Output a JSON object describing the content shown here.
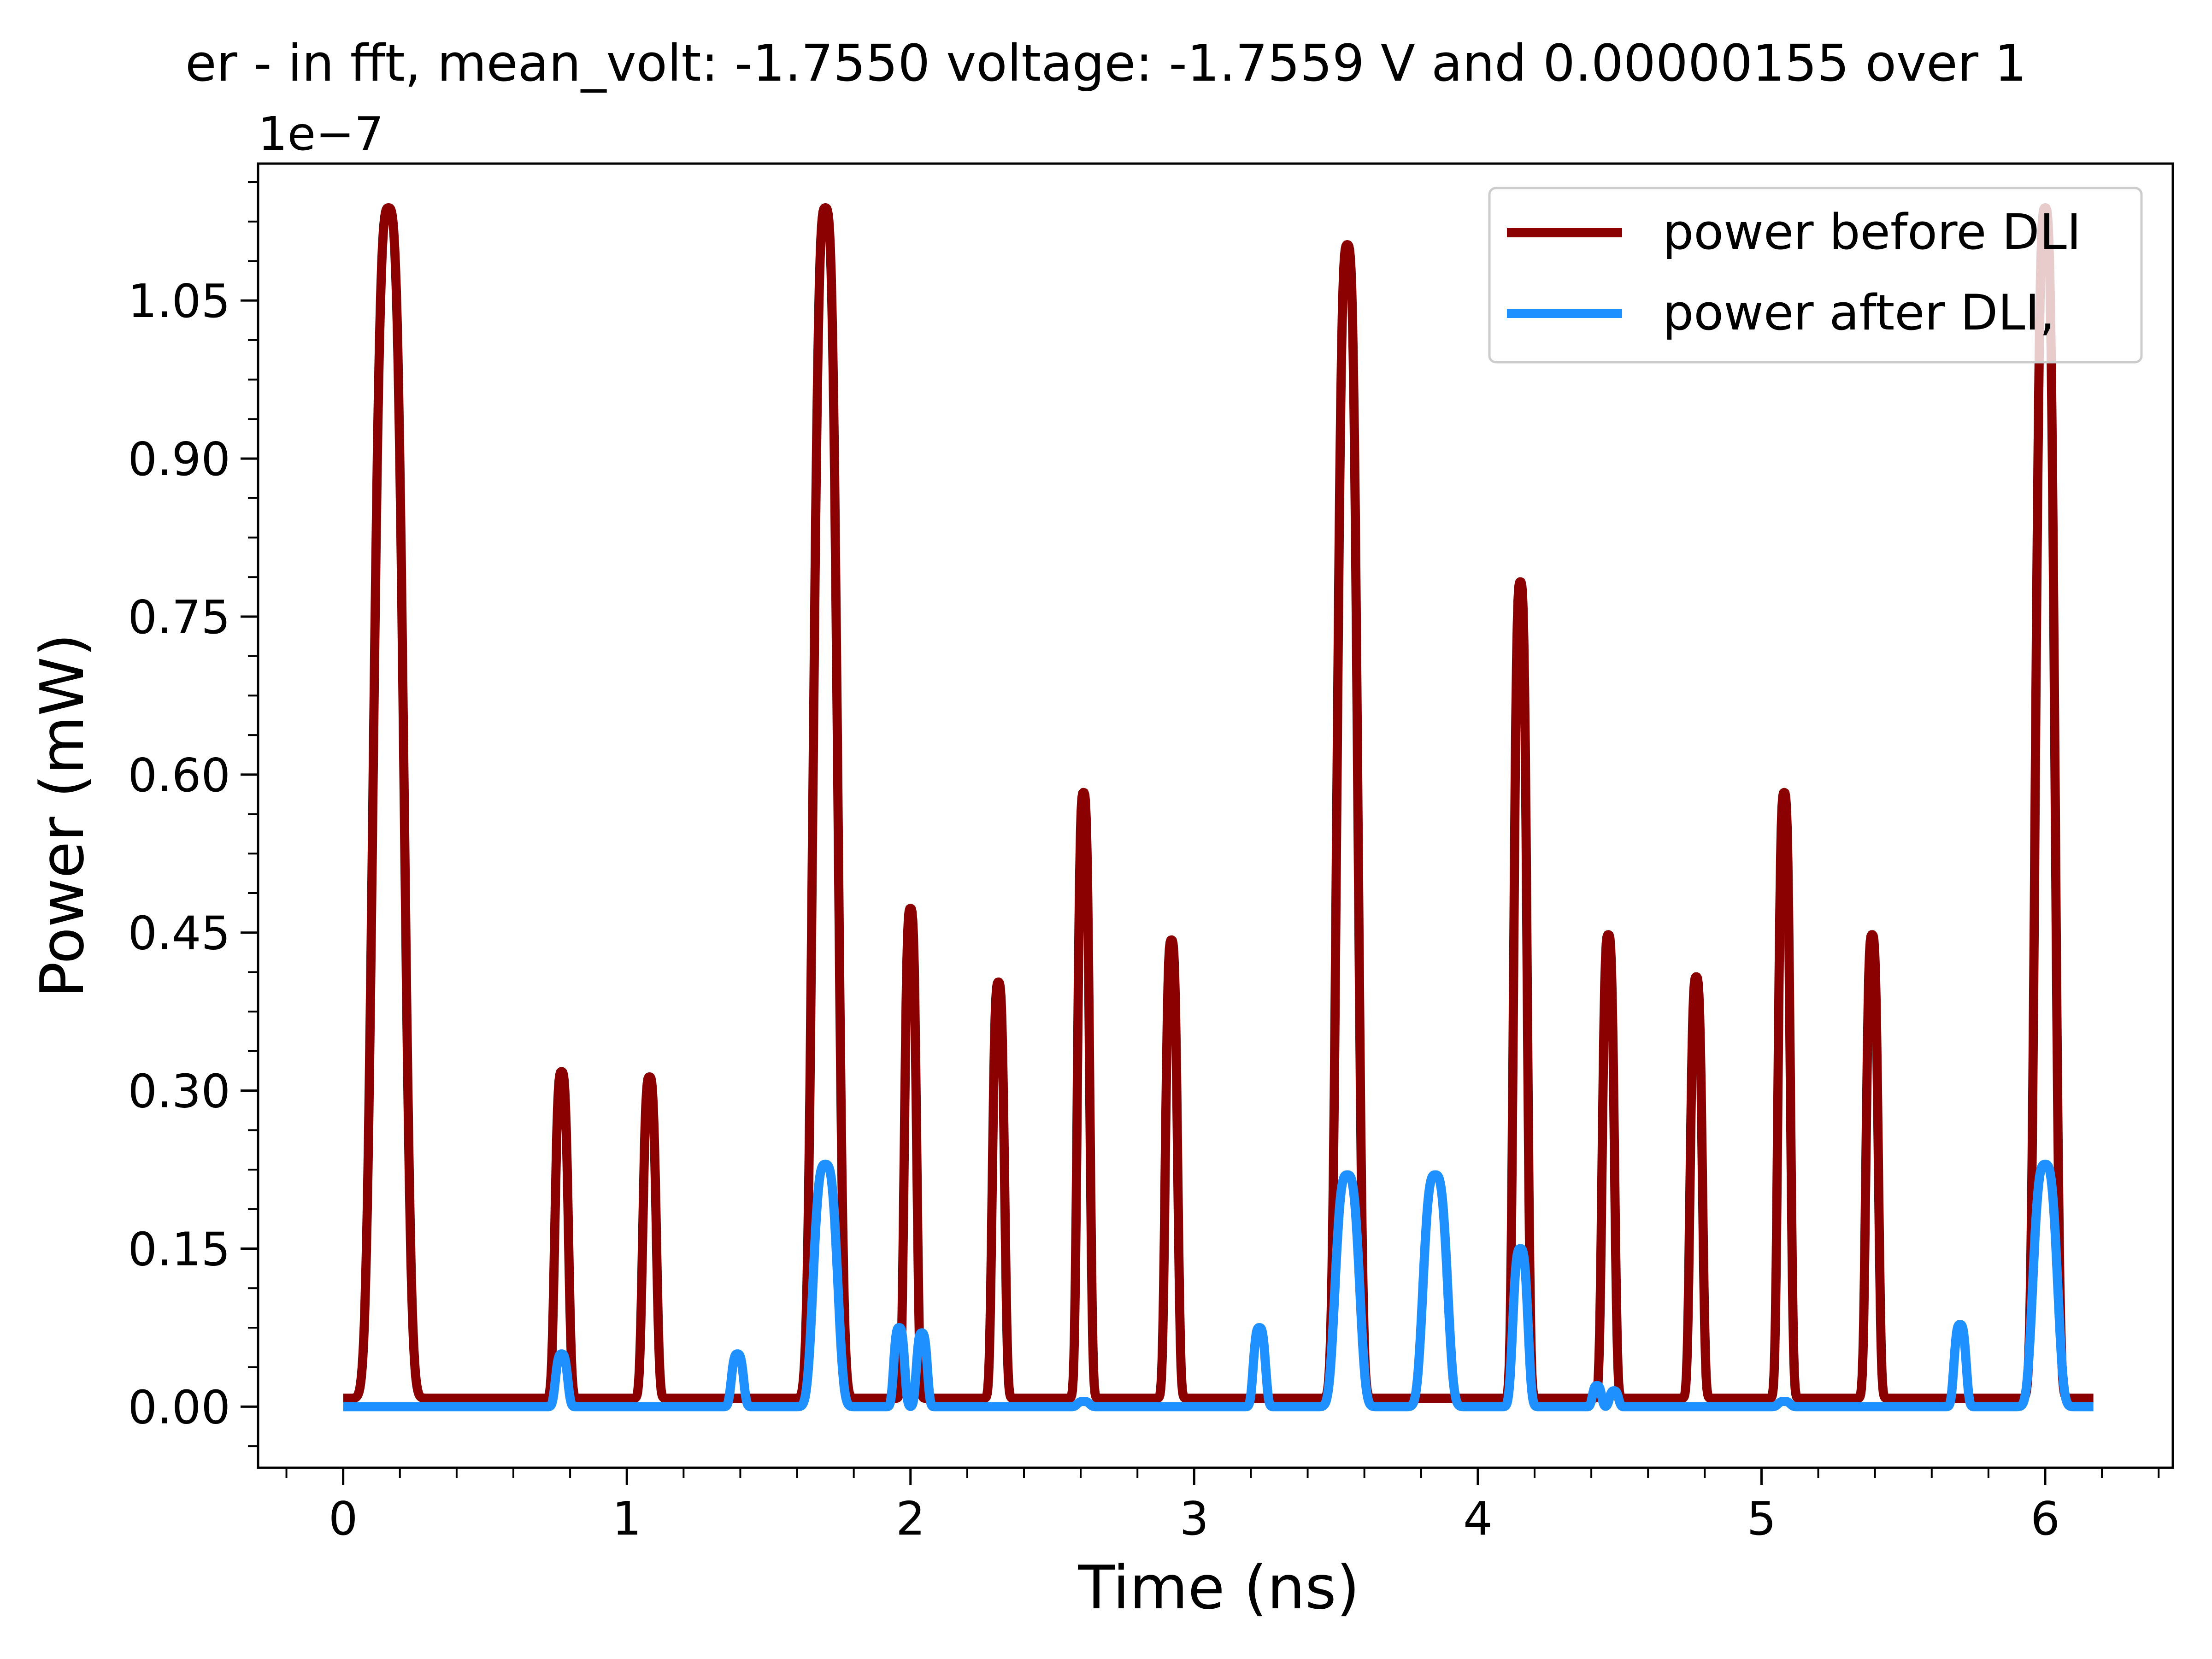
{
  "chart_data": {
    "type": "line",
    "title": "er - in fft, mean_volt: -1.7550 voltage: -1.7559 V and 0.00000155 over 1",
    "xlabel": "Time (ns)",
    "ylabel": "Power (mW)",
    "y_offset_label": "1e−7",
    "xlim": [
      -0.3,
      6.45
    ],
    "ylim": [
      -5.8e-09,
      1.18e-07
    ],
    "x_ticks": [
      0,
      1,
      2,
      3,
      4,
      5,
      6
    ],
    "x_tick_labels": [
      "0",
      "1",
      "2",
      "3",
      "4",
      "5",
      "6"
    ],
    "y_ticks": [
      0,
      1.5e-08,
      3e-08,
      4.5e-08,
      6e-08,
      7.5e-08,
      9e-08,
      1.05e-07
    ],
    "y_tick_labels": [
      "0.00",
      "0.15",
      "0.30",
      "0.45",
      "0.60",
      "0.75",
      "0.90",
      "1.05"
    ],
    "grid": false,
    "legend_position": "top-right",
    "x_range": [
      0,
      6.17
    ],
    "series": [
      {
        "name": "power before DLI",
        "color": "#8b0000",
        "baseline": 8e-10,
        "peaks": [
          {
            "x": 0.16,
            "y": 1.13e-07,
            "w": 0.05
          },
          {
            "x": 0.77,
            "y": 3.1e-08,
            "w": 0.022
          },
          {
            "x": 1.08,
            "y": 3.05e-08,
            "w": 0.022
          },
          {
            "x": 1.7,
            "y": 1.13e-07,
            "w": 0.04
          },
          {
            "x": 2.0,
            "y": 4.65e-08,
            "w": 0.02
          },
          {
            "x": 2.31,
            "y": 3.95e-08,
            "w": 0.02
          },
          {
            "x": 2.61,
            "y": 5.75e-08,
            "w": 0.02
          },
          {
            "x": 2.92,
            "y": 4.35e-08,
            "w": 0.02
          },
          {
            "x": 3.54,
            "y": 1.095e-07,
            "w": 0.034
          },
          {
            "x": 4.15,
            "y": 7.75e-08,
            "w": 0.022
          },
          {
            "x": 4.46,
            "y": 4.4e-08,
            "w": 0.02
          },
          {
            "x": 4.77,
            "y": 4e-08,
            "w": 0.02
          },
          {
            "x": 5.08,
            "y": 5.75e-08,
            "w": 0.02
          },
          {
            "x": 5.39,
            "y": 4.4e-08,
            "w": 0.02
          },
          {
            "x": 6.0,
            "y": 1.13e-07,
            "w": 0.032
          }
        ]
      },
      {
        "name": "power after DLI,",
        "color": "#1e90ff",
        "baseline": 0.0,
        "peaks": [
          {
            "x": 0.77,
            "y": 5e-09,
            "w": 0.02
          },
          {
            "x": 1.39,
            "y": 5e-09,
            "w": 0.02
          },
          {
            "x": 1.7,
            "y": 2.3e-08,
            "w": 0.04
          },
          {
            "x": 1.96,
            "y": 7.5e-09,
            "w": 0.018
          },
          {
            "x": 2.04,
            "y": 7e-09,
            "w": 0.018
          },
          {
            "x": 2.61,
            "y": 5e-10,
            "w": 0.02
          },
          {
            "x": 3.23,
            "y": 7.5e-09,
            "w": 0.02
          },
          {
            "x": 3.54,
            "y": 2.2e-08,
            "w": 0.04
          },
          {
            "x": 3.85,
            "y": 2.2e-08,
            "w": 0.04
          },
          {
            "x": 4.15,
            "y": 1.5e-08,
            "w": 0.025
          },
          {
            "x": 4.42,
            "y": 2e-09,
            "w": 0.015
          },
          {
            "x": 4.48,
            "y": 1.5e-09,
            "w": 0.015
          },
          {
            "x": 5.08,
            "y": 5e-10,
            "w": 0.02
          },
          {
            "x": 5.7,
            "y": 7.8e-09,
            "w": 0.02
          },
          {
            "x": 6.0,
            "y": 2.3e-08,
            "w": 0.04
          }
        ]
      }
    ]
  }
}
